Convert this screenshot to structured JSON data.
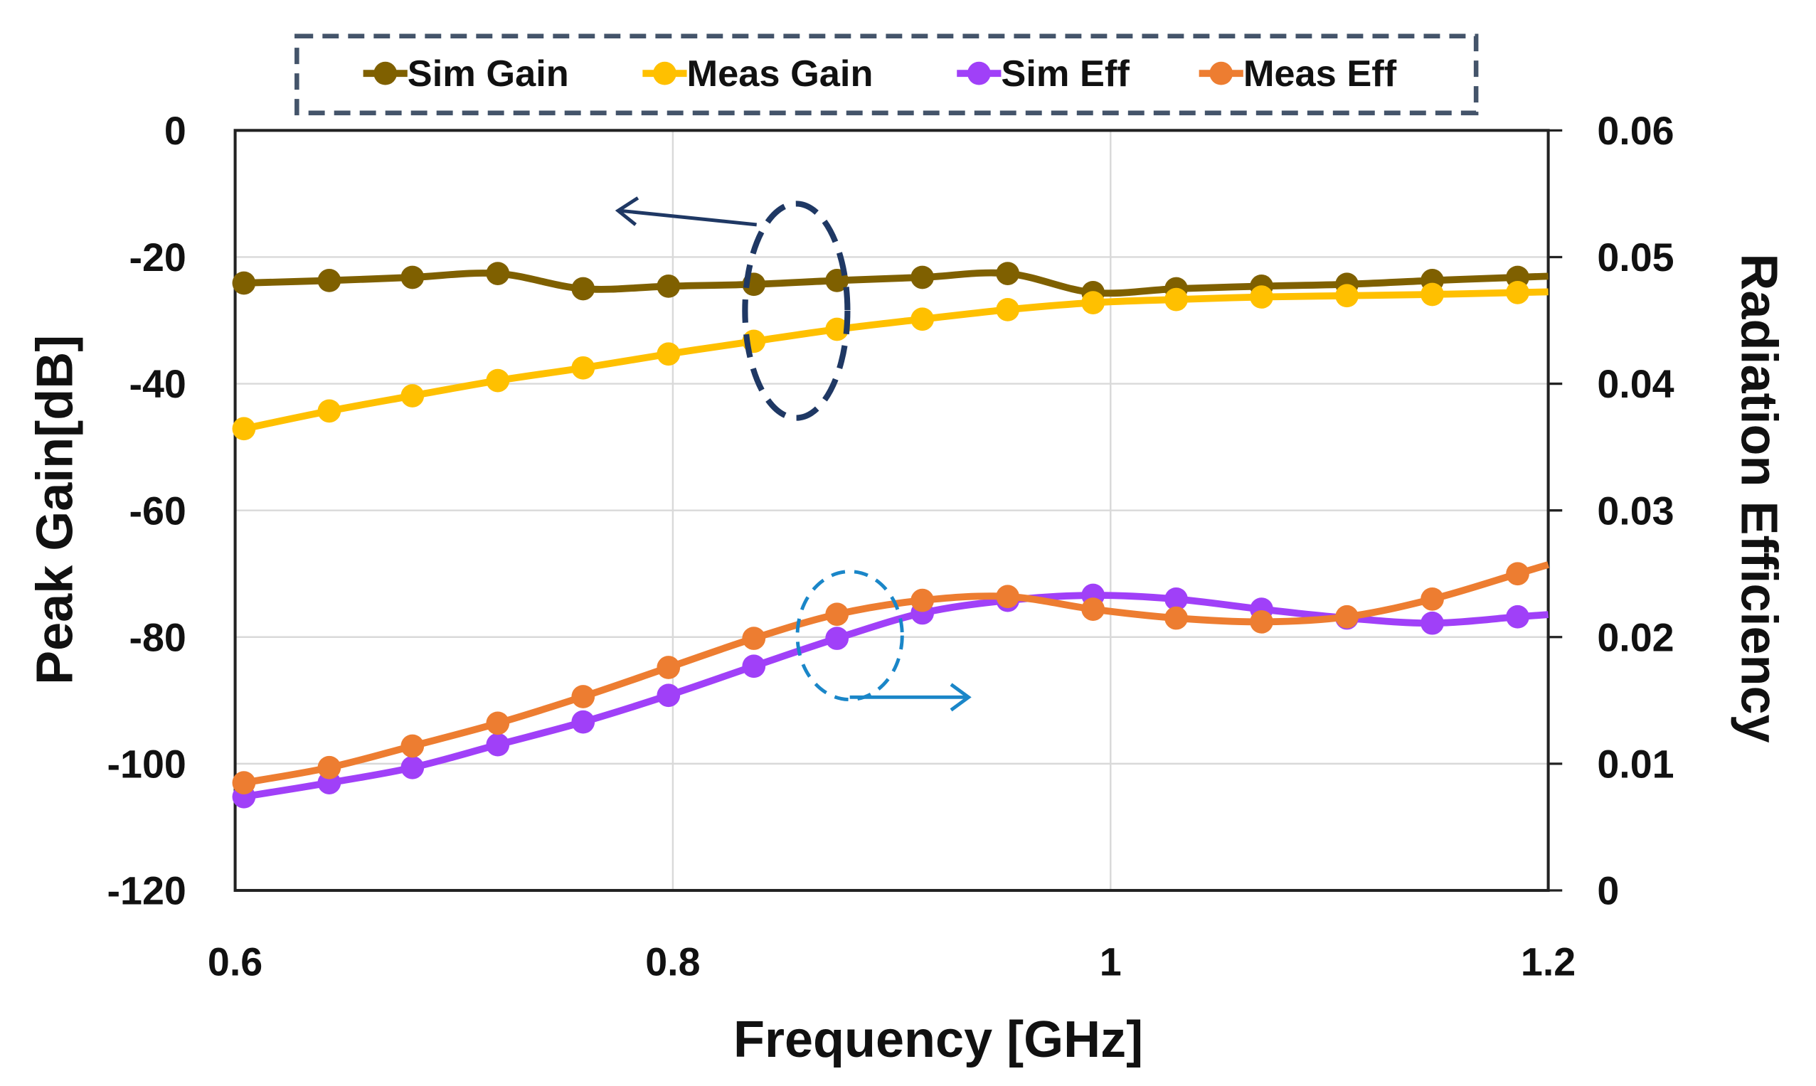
{
  "chart_data": {
    "type": "line",
    "title": "",
    "xlabel": "Frequency [GHz]",
    "ylabel": "Peak Gain[dB]",
    "y2label": "Radiation Efficiency",
    "xlim": [
      0.6,
      1.2
    ],
    "ylim": [
      -120,
      0
    ],
    "y2lim": [
      0,
      0.06
    ],
    "xticks": [
      "0.6",
      "0.8",
      "1",
      "1.2"
    ],
    "xtick_values": [
      0.6,
      0.8,
      1.0,
      1.2
    ],
    "yticks": [
      "0",
      "-20",
      "-40",
      "-60",
      "-80",
      "-100",
      "-120"
    ],
    "ytick_values": [
      0,
      -20,
      -40,
      -60,
      -80,
      -100,
      -120
    ],
    "y2ticks": [
      "0.06",
      "0.05",
      "0.04",
      "0.03",
      "0.02",
      "0.01",
      "0"
    ],
    "y2tick_values": [
      0.06,
      0.05,
      0.04,
      0.03,
      0.02,
      0.01,
      0
    ],
    "grid": true,
    "legend_position": "top-center",
    "x": [
      0.604,
      0.643,
      0.681,
      0.72,
      0.759,
      0.798,
      0.837,
      0.875,
      0.914,
      0.953,
      0.992,
      1.03,
      1.069,
      1.108,
      1.147,
      1.186
    ],
    "series": [
      {
        "name": "Sim Gain",
        "axis": "left",
        "color": "#7f6000",
        "values": [
          -24.1,
          -23.7,
          -23.2,
          -22.6,
          -25.0,
          -24.6,
          -24.3,
          -23.7,
          -23.2,
          -22.6,
          -25.6,
          -25.0,
          -24.6,
          -24.3,
          -23.7,
          -23.2
        ]
      },
      {
        "name": "Meas Gain",
        "axis": "left",
        "color": "#ffc000",
        "values": [
          -47.1,
          -44.3,
          -41.9,
          -39.5,
          -37.5,
          -35.3,
          -33.3,
          -31.4,
          -29.8,
          -28.3,
          -27.2,
          -26.7,
          -26.3,
          -26.1,
          -25.9,
          -25.6
        ]
      },
      {
        "name": "Sim Eff",
        "axis": "right",
        "color": "#a040f8",
        "values": [
          0.0074,
          0.0085,
          0.0097,
          0.0115,
          0.0133,
          0.0154,
          0.0177,
          0.0199,
          0.0219,
          0.0229,
          0.0233,
          0.023,
          0.0222,
          0.0215,
          0.0211,
          0.0216
        ]
      },
      {
        "name": "Meas Eff",
        "axis": "right",
        "color": "#ed7d31",
        "values": [
          0.0085,
          0.0097,
          0.0114,
          0.0132,
          0.0153,
          0.0176,
          0.0199,
          0.0218,
          0.0229,
          0.0232,
          0.0222,
          0.0215,
          0.0212,
          0.0216,
          0.023,
          0.025
        ]
      }
    ]
  }
}
